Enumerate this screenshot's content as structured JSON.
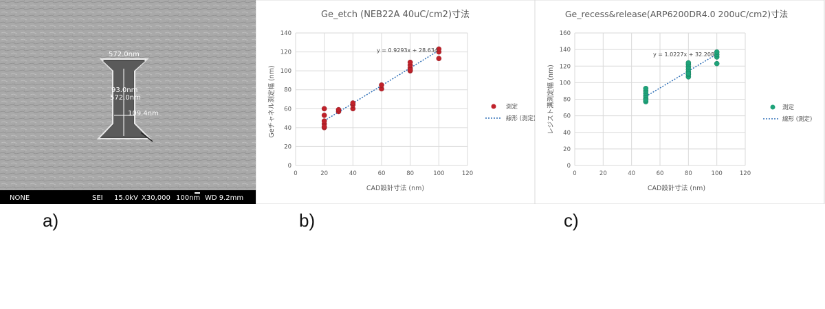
{
  "sem": {
    "measure_top": "572.0nm",
    "measure_mid_1": "93.0nm",
    "measure_mid_2": "572.0nm",
    "measure_neck": "109.4nm",
    "info_bar": {
      "mode": "NONE",
      "detector": "SEI",
      "voltage": "15.0kV",
      "magnification": "X30,000",
      "scale": "100nm",
      "wd": "WD 9.2mm"
    }
  },
  "panel_labels": [
    "a)",
    "b)",
    "c)"
  ],
  "colors": {
    "series_b": "#c0222b",
    "series_c": "#1fa37a",
    "trend": "#2e6fb7",
    "grid": "#d9d9d9"
  },
  "chart_data": [
    {
      "type": "scatter",
      "title": "Ge_etch (NEB22A 40uC/cm2)寸法",
      "xlabel": "CAD設計寸法 (nm)",
      "ylabel": "Geチャネル測定幅 (nm)",
      "xlim": [
        0,
        120
      ],
      "ylim": [
        0,
        140
      ],
      "xticks": [
        0,
        20,
        40,
        60,
        80,
        100,
        120
      ],
      "yticks": [
        0,
        20,
        40,
        60,
        80,
        100,
        120,
        140
      ],
      "grid": true,
      "legend_position": "right",
      "series": [
        {
          "name": "測定",
          "x": [
            20,
            20,
            20,
            20,
            20,
            20,
            30,
            30,
            40,
            40,
            40,
            60,
            60,
            80,
            80,
            80,
            80,
            80,
            100,
            100,
            100
          ],
          "y": [
            40,
            44,
            47,
            53,
            60,
            41,
            57,
            59,
            60,
            64,
            66,
            81,
            85,
            100,
            103,
            106,
            109,
            101,
            113,
            120,
            123
          ]
        }
      ],
      "trendline": {
        "name": "線形 (測定)",
        "slope": 0.9293,
        "intercept": 28.634,
        "equation": "y = 0.9293x + 28.634"
      }
    },
    {
      "type": "scatter",
      "title": "Ge_recess&release(ARP6200DR4.0 200uC/cm2)寸法",
      "xlabel": "CAD設計寸法 (nm)",
      "ylabel": "レジスト溝測定幅 (nm)",
      "xlim": [
        0,
        120
      ],
      "ylim": [
        0,
        160
      ],
      "xticks": [
        0,
        20,
        40,
        60,
        80,
        100,
        120
      ],
      "yticks": [
        0,
        20,
        40,
        60,
        80,
        100,
        120,
        140,
        160
      ],
      "grid": true,
      "legend_position": "right",
      "series": [
        {
          "name": "測定",
          "x": [
            50,
            50,
            50,
            50,
            50,
            50,
            50,
            80,
            80,
            80,
            80,
            80,
            80,
            80,
            80,
            100,
            100,
            100,
            100
          ],
          "y": [
            77,
            81,
            84,
            87,
            90,
            93,
            79,
            107,
            110,
            113,
            116,
            119,
            122,
            124,
            111,
            123,
            131,
            134,
            137
          ]
        }
      ],
      "trendline": {
        "name": "線形 (測定)",
        "slope": 1.0227,
        "intercept": 32.208,
        "equation": "y = 1.0227x + 32.208"
      }
    }
  ]
}
